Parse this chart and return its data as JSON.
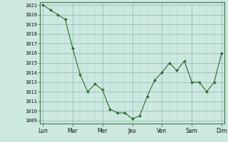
{
  "x_values": [
    0,
    0.5,
    1,
    1.5,
    2,
    2.5,
    3,
    3.5,
    4,
    4.5,
    5,
    5.5,
    6,
    6.5,
    7,
    7.5,
    8,
    8.5,
    9,
    9.5,
    10,
    10.5,
    11,
    11.5,
    12
  ],
  "y_values": [
    1021,
    1020.5,
    1020,
    1019.5,
    1016.5,
    1013.8,
    1012,
    1012.8,
    1012.2,
    1010.2,
    1009.8,
    1009.8,
    1009.2,
    1009.5,
    1011.5,
    1013.2,
    1014,
    1015,
    1014.2,
    1015.2,
    1013,
    1013,
    1012,
    1013,
    1016
  ],
  "x_tick_positions": [
    0,
    2,
    4,
    6,
    8,
    10,
    12
  ],
  "x_tick_labels": [
    "Lun",
    "Mar",
    "Mer",
    "Jeu",
    "Ven",
    "Sam",
    "Dim"
  ],
  "y_min": 1009,
  "y_max": 1021,
  "line_color": "#2d6a2d",
  "marker_color": "#2d6a2d",
  "bg_color": "#cce8e0",
  "grid_major_color": "#8ab8b0",
  "grid_minor_color": "#b0d4cc",
  "spine_color": "#3d7a3d"
}
